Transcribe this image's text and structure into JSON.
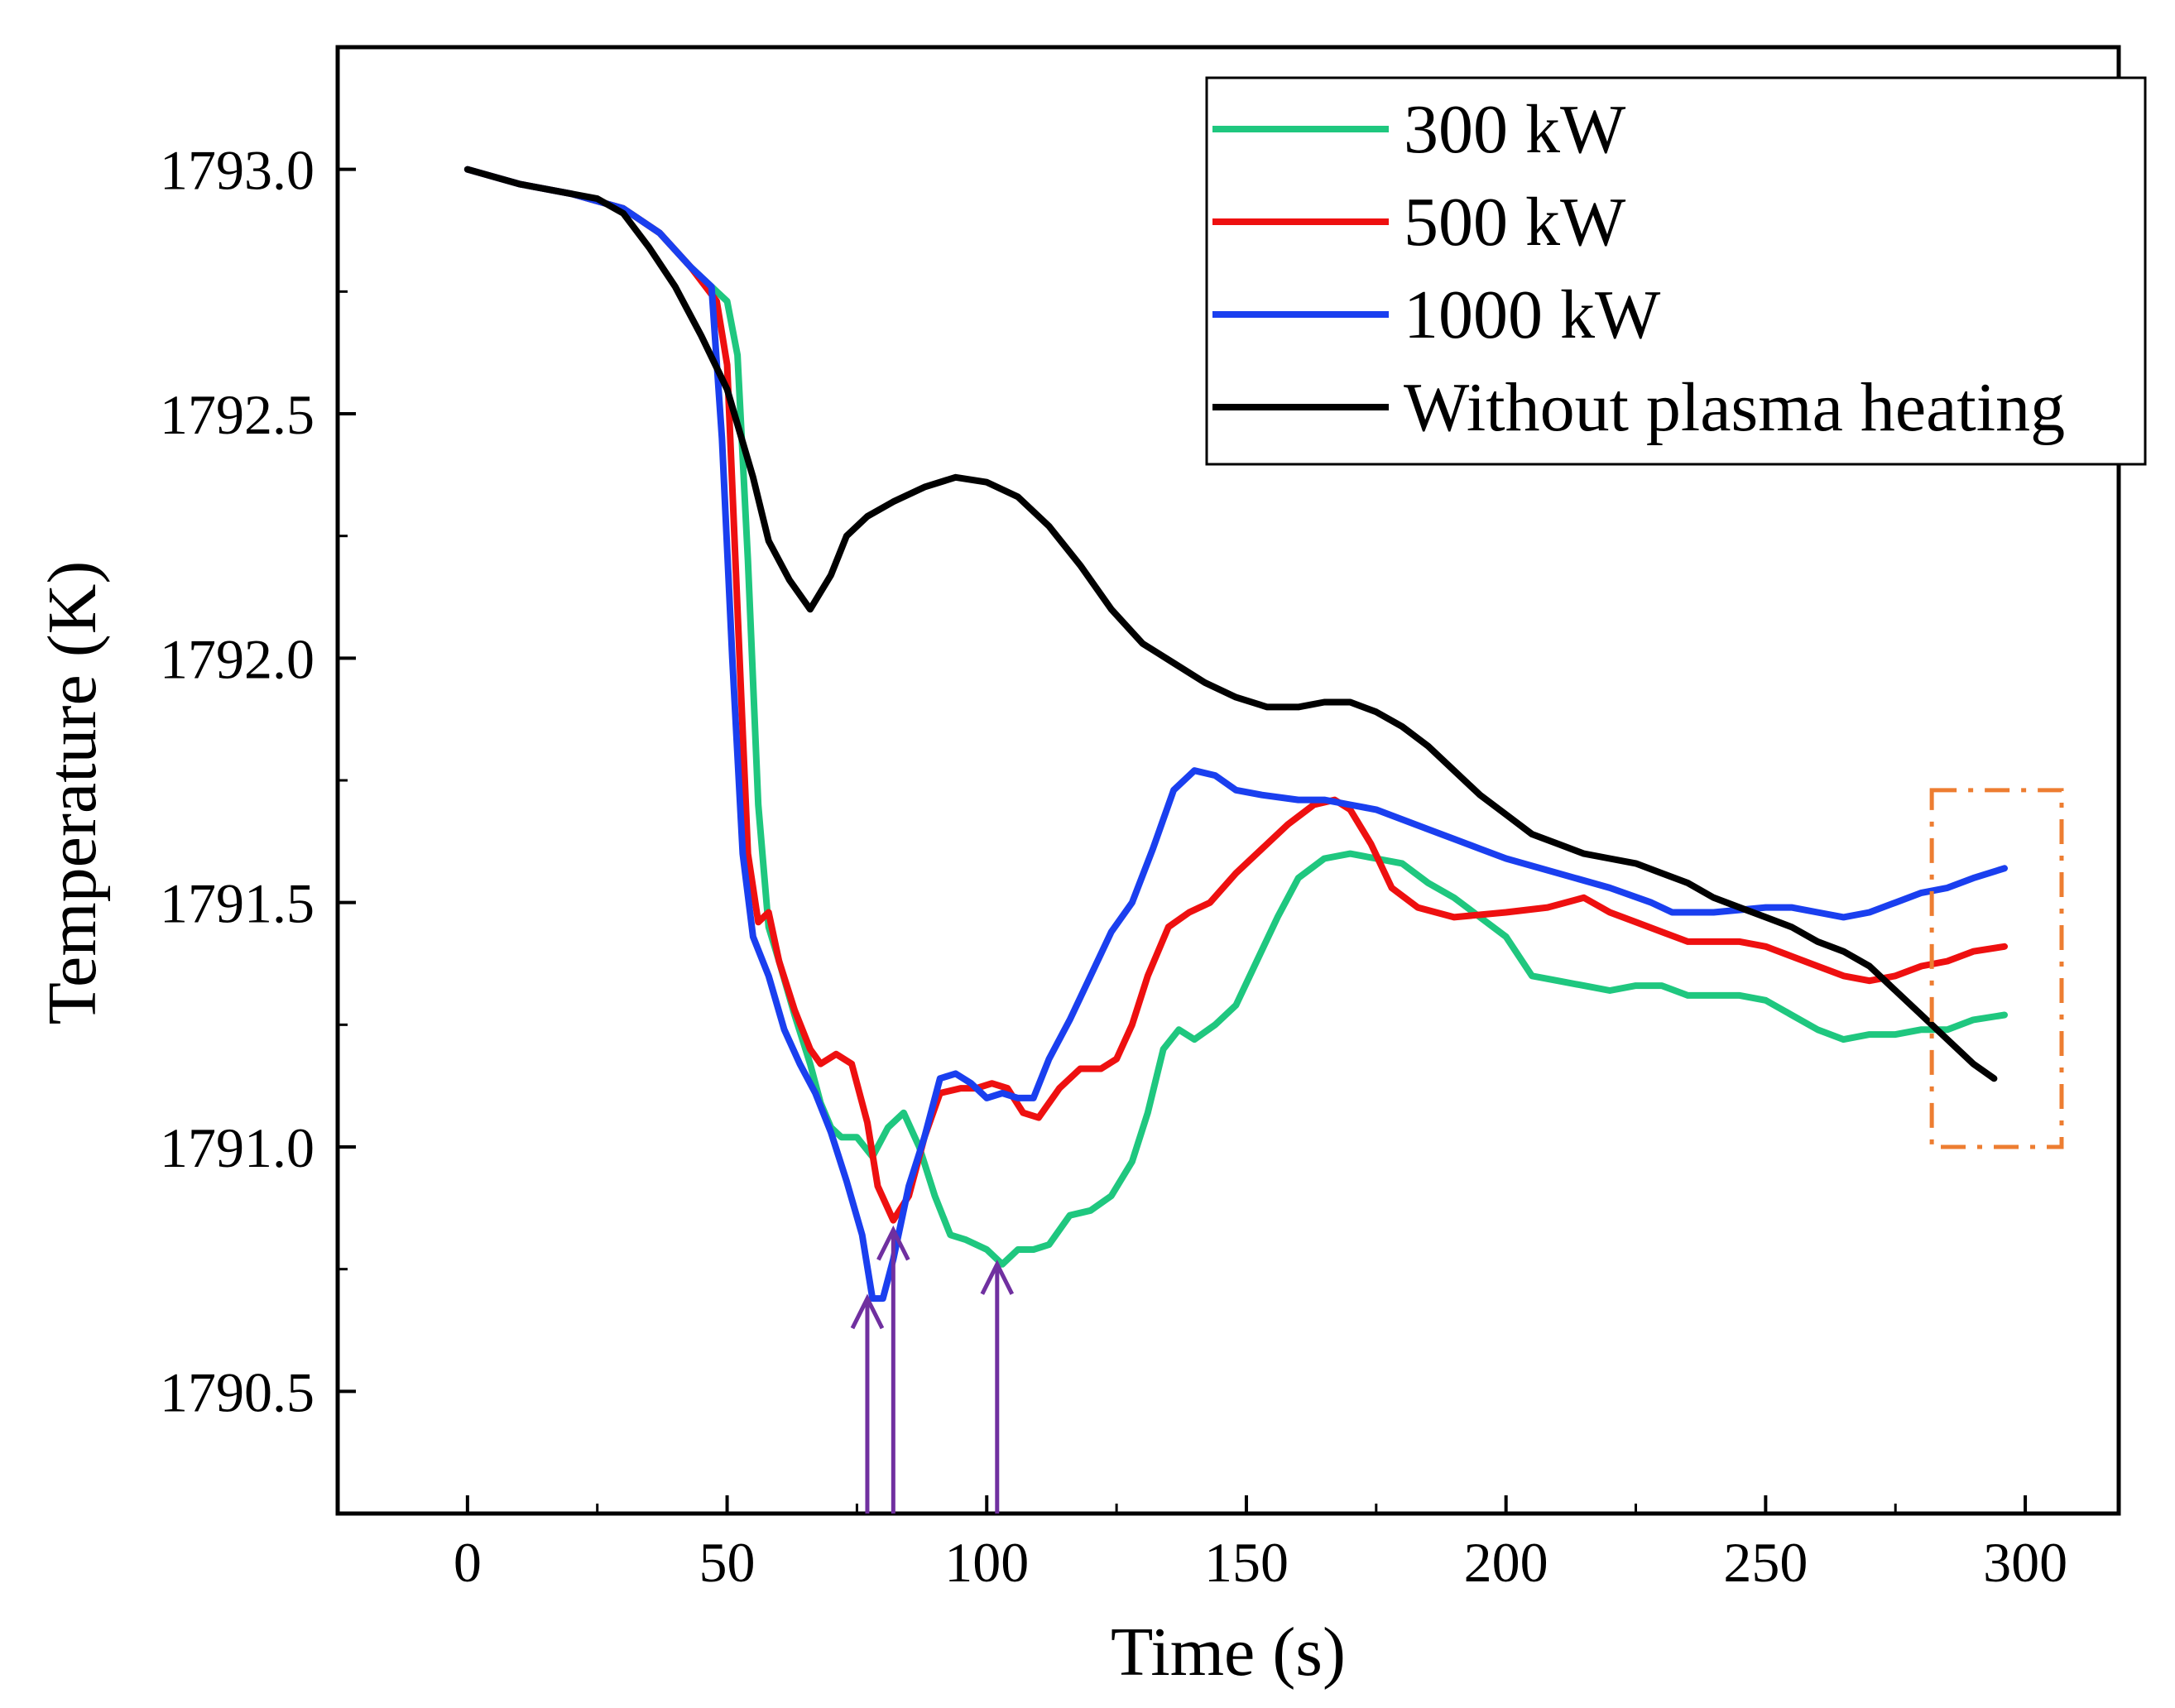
{
  "chart_data": {
    "type": "line",
    "xlabel": "Time (s)",
    "ylabel": "Temperature (K)",
    "xlim": [
      -25,
      318
    ],
    "ylim": [
      1790.25,
      1793.25
    ],
    "xticks": [
      0,
      50,
      100,
      150,
      200,
      250,
      300
    ],
    "xtick_labels": [
      "0",
      "50",
      "100",
      "150",
      "200",
      "250",
      "300"
    ],
    "yticks": [
      1790.5,
      1791.0,
      1791.5,
      1792.0,
      1792.5,
      1793.0
    ],
    "ytick_labels": [
      "1790.5",
      "1791.0",
      "1791.5",
      "1792.0",
      "1792.5",
      "1793.0"
    ],
    "grid": false,
    "legend_position": "top-right",
    "series": [
      {
        "name": "300 kW",
        "color": "#1fc77f",
        "points": [
          [
            0,
            1793.0
          ],
          [
            10,
            1792.97
          ],
          [
            20,
            1792.95
          ],
          [
            30,
            1792.92
          ],
          [
            37,
            1792.87
          ],
          [
            43,
            1792.8
          ],
          [
            48,
            1792.75
          ],
          [
            50,
            1792.73
          ],
          [
            52,
            1792.62
          ],
          [
            54,
            1792.2
          ],
          [
            56,
            1791.7
          ],
          [
            58,
            1791.45
          ],
          [
            60,
            1791.38
          ],
          [
            63,
            1791.27
          ],
          [
            66,
            1791.17
          ],
          [
            68,
            1791.09
          ],
          [
            70,
            1791.04
          ],
          [
            72,
            1791.02
          ],
          [
            75,
            1791.02
          ],
          [
            78,
            1790.98
          ],
          [
            81,
            1791.04
          ],
          [
            84,
            1791.07
          ],
          [
            87,
            1791.0
          ],
          [
            90,
            1790.9
          ],
          [
            93,
            1790.82
          ],
          [
            96,
            1790.81
          ],
          [
            100,
            1790.79
          ],
          [
            103,
            1790.76
          ],
          [
            106,
            1790.79
          ],
          [
            109,
            1790.79
          ],
          [
            112,
            1790.8
          ],
          [
            116,
            1790.86
          ],
          [
            120,
            1790.87
          ],
          [
            124,
            1790.9
          ],
          [
            128,
            1790.97
          ],
          [
            131,
            1791.07
          ],
          [
            134,
            1791.2
          ],
          [
            137,
            1791.24
          ],
          [
            140,
            1791.22
          ],
          [
            144,
            1791.25
          ],
          [
            148,
            1791.29
          ],
          [
            152,
            1791.38
          ],
          [
            156,
            1791.47
          ],
          [
            160,
            1791.55
          ],
          [
            165,
            1791.59
          ],
          [
            170,
            1791.6
          ],
          [
            175,
            1791.59
          ],
          [
            180,
            1791.58
          ],
          [
            185,
            1791.54
          ],
          [
            190,
            1791.51
          ],
          [
            195,
            1791.47
          ],
          [
            200,
            1791.43
          ],
          [
            205,
            1791.35
          ],
          [
            210,
            1791.34
          ],
          [
            215,
            1791.33
          ],
          [
            220,
            1791.32
          ],
          [
            225,
            1791.33
          ],
          [
            230,
            1791.33
          ],
          [
            235,
            1791.31
          ],
          [
            240,
            1791.31
          ],
          [
            245,
            1791.31
          ],
          [
            250,
            1791.3
          ],
          [
            255,
            1791.27
          ],
          [
            260,
            1791.24
          ],
          [
            265,
            1791.22
          ],
          [
            270,
            1791.23
          ],
          [
            275,
            1791.23
          ],
          [
            280,
            1791.24
          ],
          [
            285,
            1791.24
          ],
          [
            290,
            1791.26
          ],
          [
            296,
            1791.27
          ]
        ]
      },
      {
        "name": "500 kW",
        "color": "#ee1010",
        "points": [
          [
            0,
            1793.0
          ],
          [
            10,
            1792.97
          ],
          [
            20,
            1792.95
          ],
          [
            30,
            1792.92
          ],
          [
            37,
            1792.87
          ],
          [
            43,
            1792.8
          ],
          [
            48,
            1792.73
          ],
          [
            50,
            1792.6
          ],
          [
            52,
            1792.1
          ],
          [
            54,
            1791.6
          ],
          [
            56,
            1791.46
          ],
          [
            58,
            1791.48
          ],
          [
            60,
            1791.38
          ],
          [
            63,
            1791.28
          ],
          [
            66,
            1791.2
          ],
          [
            68,
            1791.17
          ],
          [
            71,
            1791.19
          ],
          [
            74,
            1791.17
          ],
          [
            77,
            1791.05
          ],
          [
            79,
            1790.92
          ],
          [
            82,
            1790.85
          ],
          [
            85,
            1790.9
          ],
          [
            88,
            1791.02
          ],
          [
            91,
            1791.11
          ],
          [
            95,
            1791.12
          ],
          [
            98,
            1791.12
          ],
          [
            101,
            1791.13
          ],
          [
            104,
            1791.12
          ],
          [
            107,
            1791.07
          ],
          [
            110,
            1791.06
          ],
          [
            114,
            1791.12
          ],
          [
            118,
            1791.16
          ],
          [
            122,
            1791.16
          ],
          [
            125,
            1791.18
          ],
          [
            128,
            1791.25
          ],
          [
            131,
            1791.35
          ],
          [
            135,
            1791.45
          ],
          [
            139,
            1791.48
          ],
          [
            143,
            1791.5
          ],
          [
            148,
            1791.56
          ],
          [
            153,
            1791.61
          ],
          [
            158,
            1791.66
          ],
          [
            163,
            1791.7
          ],
          [
            167,
            1791.71
          ],
          [
            170,
            1791.69
          ],
          [
            174,
            1791.62
          ],
          [
            178,
            1791.53
          ],
          [
            183,
            1791.49
          ],
          [
            190,
            1791.47
          ],
          [
            200,
            1791.48
          ],
          [
            208,
            1791.49
          ],
          [
            215,
            1791.51
          ],
          [
            220,
            1791.48
          ],
          [
            225,
            1791.46
          ],
          [
            230,
            1791.44
          ],
          [
            235,
            1791.42
          ],
          [
            240,
            1791.42
          ],
          [
            245,
            1791.42
          ],
          [
            250,
            1791.41
          ],
          [
            255,
            1791.39
          ],
          [
            260,
            1791.37
          ],
          [
            265,
            1791.35
          ],
          [
            270,
            1791.34
          ],
          [
            275,
            1791.35
          ],
          [
            280,
            1791.37
          ],
          [
            285,
            1791.38
          ],
          [
            290,
            1791.4
          ],
          [
            296,
            1791.41
          ]
        ]
      },
      {
        "name": "1000 kW",
        "color": "#1a3fef",
        "points": [
          [
            0,
            1793.0
          ],
          [
            10,
            1792.97
          ],
          [
            20,
            1792.95
          ],
          [
            30,
            1792.92
          ],
          [
            37,
            1792.87
          ],
          [
            43,
            1792.8
          ],
          [
            47,
            1792.76
          ],
          [
            49,
            1792.45
          ],
          [
            51,
            1792.0
          ],
          [
            53,
            1791.6
          ],
          [
            55,
            1791.43
          ],
          [
            58,
            1791.35
          ],
          [
            61,
            1791.24
          ],
          [
            64,
            1791.17
          ],
          [
            67,
            1791.11
          ],
          [
            70,
            1791.03
          ],
          [
            73,
            1790.93
          ],
          [
            76,
            1790.82
          ],
          [
            78,
            1790.69
          ],
          [
            80,
            1790.69
          ],
          [
            82,
            1790.77
          ],
          [
            85,
            1790.92
          ],
          [
            88,
            1791.02
          ],
          [
            91,
            1791.14
          ],
          [
            94,
            1791.15
          ],
          [
            97,
            1791.13
          ],
          [
            100,
            1791.1
          ],
          [
            103,
            1791.11
          ],
          [
            106,
            1791.1
          ],
          [
            109,
            1791.1
          ],
          [
            112,
            1791.18
          ],
          [
            116,
            1791.26
          ],
          [
            120,
            1791.35
          ],
          [
            124,
            1791.44
          ],
          [
            128,
            1791.5
          ],
          [
            132,
            1791.61
          ],
          [
            136,
            1791.73
          ],
          [
            140,
            1791.77
          ],
          [
            144,
            1791.76
          ],
          [
            148,
            1791.73
          ],
          [
            153,
            1791.72
          ],
          [
            160,
            1791.71
          ],
          [
            165,
            1791.71
          ],
          [
            170,
            1791.7
          ],
          [
            175,
            1791.69
          ],
          [
            180,
            1791.67
          ],
          [
            185,
            1791.65
          ],
          [
            190,
            1791.63
          ],
          [
            195,
            1791.61
          ],
          [
            200,
            1791.59
          ],
          [
            210,
            1791.56
          ],
          [
            220,
            1791.53
          ],
          [
            228,
            1791.5
          ],
          [
            232,
            1791.48
          ],
          [
            240,
            1791.48
          ],
          [
            250,
            1791.49
          ],
          [
            255,
            1791.49
          ],
          [
            260,
            1791.48
          ],
          [
            265,
            1791.47
          ],
          [
            270,
            1791.48
          ],
          [
            275,
            1791.5
          ],
          [
            280,
            1791.52
          ],
          [
            285,
            1791.53
          ],
          [
            290,
            1791.55
          ],
          [
            296,
            1791.57
          ]
        ]
      },
      {
        "name": "Without plasma heating",
        "color": "#000000",
        "points": [
          [
            0,
            1793.0
          ],
          [
            10,
            1792.97
          ],
          [
            20,
            1792.95
          ],
          [
            25,
            1792.94
          ],
          [
            30,
            1792.91
          ],
          [
            35,
            1792.84
          ],
          [
            40,
            1792.76
          ],
          [
            45,
            1792.66
          ],
          [
            50,
            1792.55
          ],
          [
            55,
            1792.37
          ],
          [
            58,
            1792.24
          ],
          [
            62,
            1792.16
          ],
          [
            66,
            1792.1
          ],
          [
            70,
            1792.17
          ],
          [
            73,
            1792.25
          ],
          [
            77,
            1792.29
          ],
          [
            82,
            1792.32
          ],
          [
            88,
            1792.35
          ],
          [
            94,
            1792.37
          ],
          [
            100,
            1792.36
          ],
          [
            106,
            1792.33
          ],
          [
            112,
            1792.27
          ],
          [
            118,
            1792.19
          ],
          [
            124,
            1792.1
          ],
          [
            130,
            1792.03
          ],
          [
            136,
            1791.99
          ],
          [
            142,
            1791.95
          ],
          [
            148,
            1791.92
          ],
          [
            154,
            1791.9
          ],
          [
            160,
            1791.9
          ],
          [
            165,
            1791.91
          ],
          [
            170,
            1791.91
          ],
          [
            175,
            1791.89
          ],
          [
            180,
            1791.86
          ],
          [
            185,
            1791.82
          ],
          [
            190,
            1791.77
          ],
          [
            195,
            1791.72
          ],
          [
            200,
            1791.68
          ],
          [
            205,
            1791.64
          ],
          [
            210,
            1791.62
          ],
          [
            215,
            1791.6
          ],
          [
            220,
            1791.59
          ],
          [
            225,
            1791.58
          ],
          [
            230,
            1791.56
          ],
          [
            235,
            1791.54
          ],
          [
            240,
            1791.51
          ],
          [
            245,
            1791.49
          ],
          [
            250,
            1791.47
          ],
          [
            255,
            1791.45
          ],
          [
            260,
            1791.42
          ],
          [
            265,
            1791.4
          ],
          [
            270,
            1791.37
          ],
          [
            275,
            1791.32
          ],
          [
            280,
            1791.27
          ],
          [
            285,
            1791.22
          ],
          [
            290,
            1791.17
          ],
          [
            294,
            1791.14
          ]
        ]
      }
    ],
    "annotations": [
      {
        "type": "arrow",
        "x": 77,
        "y_from": 1790.25,
        "y_to": 1790.69,
        "color": "#7030a0"
      },
      {
        "type": "arrow",
        "x": 82,
        "y_from": 1790.25,
        "y_to": 1790.83,
        "color": "#7030a0"
      },
      {
        "type": "arrow",
        "x": 102,
        "y_from": 1790.25,
        "y_to": 1790.76,
        "color": "#7030a0"
      },
      {
        "type": "dashdot-box",
        "x_range": [
          282,
          307
        ],
        "y_range": [
          1791.0,
          1791.73
        ],
        "color": "#ed7d31"
      }
    ]
  }
}
